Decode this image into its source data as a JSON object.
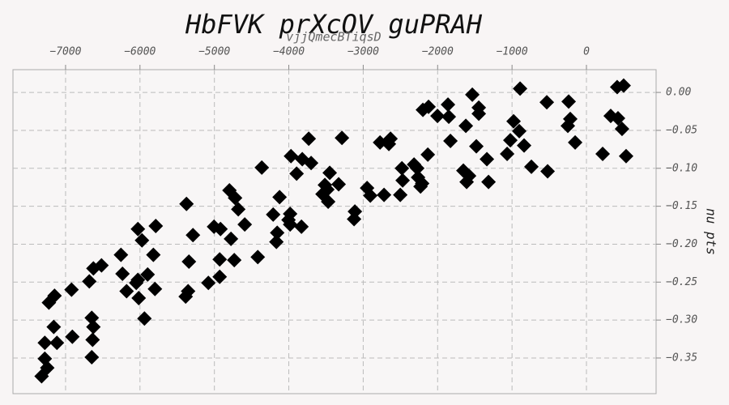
{
  "chart_data": {
    "type": "scatter",
    "title": "HbFVK prXcOV  guPRAH",
    "subtitle": "vjjQmecBTiqsD",
    "y_label": "nu pts",
    "color": "#000000",
    "grid": true,
    "xlim": [
      -7707,
      936
    ],
    "ylim": [
      -0.397,
      0.03
    ],
    "xticks": [
      {
        "value": -7000,
        "label": "−7000"
      },
      {
        "value": -6000,
        "label": "−6000"
      },
      {
        "value": -5000,
        "label": "−5000"
      },
      {
        "value": -4000,
        "label": "−4000"
      },
      {
        "value": -3000,
        "label": "−3000"
      },
      {
        "value": -2000,
        "label": "−2000"
      },
      {
        "value": -1000,
        "label": "−1000"
      },
      0
    ],
    "yticks": [
      {
        "value": 0,
        "label": "0.00"
      },
      {
        "value": -0.05,
        "label": "−0.05"
      },
      {
        "value": -0.1,
        "label": "−0.10"
      },
      {
        "value": -0.15,
        "label": "−0.15"
      },
      {
        "value": -0.2,
        "label": "−0.20"
      },
      {
        "value": -0.25,
        "label": "−0.25"
      },
      {
        "value": -0.3,
        "label": "−0.30"
      },
      {
        "value": -0.35,
        "label": "−0.35"
      }
    ],
    "x": [
      -7322,
      -7246,
      -7279,
      -7279,
      -7116,
      -7159,
      -6909,
      -7224,
      -7148,
      -6920,
      -6648,
      -6637,
      -6626,
      -6648,
      -6681,
      -6626,
      -6517,
      -6256,
      -6235,
      -6180,
      -6050,
      -6028,
      -6017,
      -5940,
      -5897,
      -5799,
      -5820,
      -5973,
      -6028,
      -5788,
      -5375,
      -5288,
      -5342,
      -5353,
      -5386,
      -5081,
      -4929,
      -4929,
      -5005,
      -4918,
      -4777,
      -4733,
      -4798,
      -4722,
      -4679,
      -4592,
      -4417,
      -4363,
      -4210,
      -4124,
      -4156,
      -4167,
      -4004,
      -3982,
      -3982,
      -3830,
      -3971,
      -3895,
      -3819,
      -3700,
      -3732,
      -3547,
      -3515,
      -3471,
      -3482,
      -3450,
      -3330,
      -3286,
      -3123,
      -3112,
      -2948,
      -2905,
      -2774,
      -2720,
      -2633,
      -2655,
      -2502,
      -2480,
      -2470,
      -2317,
      -2274,
      -2263,
      -2230,
      -2208,
      -2132,
      -2198,
      -2122,
      -2002,
      -1850,
      -1861,
      -1828,
      -1654,
      -1610,
      -1577,
      -1621,
      -1534,
      -1480,
      -1447,
      -1447,
      -1338,
      -1316,
      -1066,
      -1023,
      -979,
      -903,
      -892,
      -838,
      -740,
      -533,
      -522,
      -239,
      -250,
      -218,
      -152,
      218,
      326,
      413,
      500,
      424,
      478,
      533
    ],
    "values": [
      -0.374,
      -0.363,
      -0.351,
      -0.33,
      -0.33,
      -0.309,
      -0.322,
      -0.277,
      -0.268,
      -0.26,
      -0.349,
      -0.326,
      -0.309,
      -0.297,
      -0.249,
      -0.232,
      -0.228,
      -0.214,
      -0.239,
      -0.262,
      -0.251,
      -0.247,
      -0.271,
      -0.298,
      -0.24,
      -0.259,
      -0.214,
      -0.195,
      -0.18,
      -0.176,
      -0.147,
      -0.188,
      -0.223,
      -0.262,
      -0.269,
      -0.251,
      -0.243,
      -0.22,
      -0.177,
      -0.18,
      -0.193,
      -0.221,
      -0.129,
      -0.139,
      -0.154,
      -0.174,
      -0.217,
      -0.099,
      -0.161,
      -0.138,
      -0.185,
      -0.197,
      -0.168,
      -0.16,
      -0.174,
      -0.177,
      -0.084,
      -0.107,
      -0.088,
      -0.093,
      -0.061,
      -0.134,
      -0.122,
      -0.144,
      -0.128,
      -0.106,
      -0.121,
      -0.06,
      -0.167,
      -0.157,
      -0.126,
      -0.136,
      -0.066,
      -0.135,
      -0.061,
      -0.068,
      -0.135,
      -0.1,
      -0.116,
      -0.095,
      -0.1,
      -0.112,
      -0.124,
      -0.12,
      -0.082,
      -0.023,
      -0.019,
      -0.031,
      -0.032,
      -0.016,
      -0.064,
      -0.103,
      -0.118,
      -0.11,
      -0.044,
      -0.003,
      -0.071,
      -0.02,
      -0.028,
      -0.088,
      -0.118,
      -0.081,
      -0.063,
      -0.038,
      -0.051,
      0.005,
      -0.07,
      -0.098,
      -0.013,
      -0.104,
      -0.012,
      -0.044,
      -0.035,
      -0.066,
      -0.081,
      -0.031,
      0.007,
      0.009,
      -0.034,
      -0.048,
      -0.084
    ]
  }
}
